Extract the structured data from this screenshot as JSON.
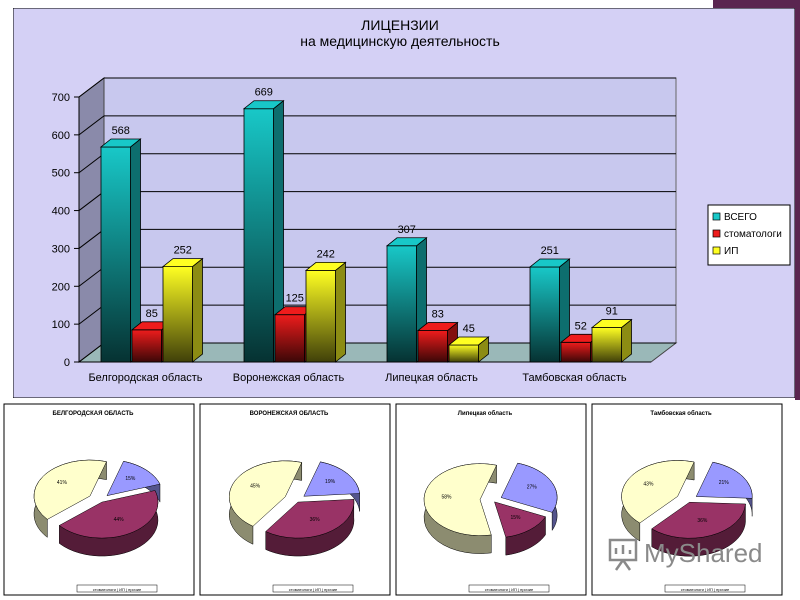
{
  "chart_data": [
    {
      "type": "bar",
      "title": "ЛИЦЕНЗИИ",
      "subtitle": "на медицинскую деятельность",
      "categories": [
        "Белгородская область",
        "Воронежская область",
        "Липецкая область",
        "Тамбовская область"
      ],
      "series": [
        {
          "name": "ВСЕГО",
          "values": [
            568,
            669,
            307,
            251
          ],
          "color": "#18c8c8"
        },
        {
          "name": "стоматологи",
          "values": [
            85,
            125,
            83,
            52
          ],
          "color": "#ee1c1c"
        },
        {
          "name": "ИП",
          "values": [
            252,
            242,
            45,
            91
          ],
          "color": "#ffff22"
        }
      ],
      "data_labels": [
        [
          "568",
          "85",
          "252"
        ],
        [
          "669",
          "125",
          "242"
        ],
        [
          "307",
          "83",
          "45"
        ],
        [
          "251",
          "52",
          "91"
        ]
      ],
      "yticks": [
        "0",
        "100",
        "200",
        "300",
        "400",
        "500",
        "600",
        "700"
      ],
      "ylim": [
        0,
        700
      ],
      "grid": true,
      "legend_position": "right",
      "style": "3d",
      "plot_background": "#d4d0f5"
    },
    {
      "type": "pie",
      "style": "3d",
      "title": "БЕЛГОРОДСКАЯ ОБЛАСТЬ",
      "slice_colors": [
        "#9999ff",
        "#993366",
        "#ffffcc"
      ],
      "slice_labels": [
        "15%",
        "44%",
        "41%"
      ],
      "values": [
        15,
        44,
        41
      ],
      "legend": "стоматологи | ИП | прочие"
    },
    {
      "type": "pie",
      "style": "3d",
      "title": "ВОРОНЕЖСКАЯ ОБЛАСТЬ",
      "slice_colors": [
        "#9999ff",
        "#993366",
        "#ffffcc"
      ],
      "slice_labels": [
        "19%",
        "36%",
        "45%"
      ],
      "values": [
        19,
        36,
        45
      ],
      "legend": "стоматологи | ИП | прочие"
    },
    {
      "type": "pie",
      "style": "3d",
      "title": "Липецкая область",
      "slice_colors": [
        "#9999ff",
        "#993366",
        "#ffffcc"
      ],
      "slice_labels": [
        "27%",
        "15%",
        "58%"
      ],
      "values": [
        27,
        15,
        58
      ],
      "legend": "стоматологи | ИП | прочие"
    },
    {
      "type": "pie",
      "style": "3d",
      "title": "Тамбовская область",
      "slice_colors": [
        "#9999ff",
        "#993366",
        "#ffffcc"
      ],
      "slice_labels": [
        "21%",
        "36%",
        "43%"
      ],
      "values": [
        21,
        36,
        43
      ],
      "legend": "стоматологи | ИП | прочие"
    }
  ],
  "watermark": {
    "text": "MyShared",
    "icon": "presentation-board-icon",
    "color": "#8a8a8a"
  }
}
